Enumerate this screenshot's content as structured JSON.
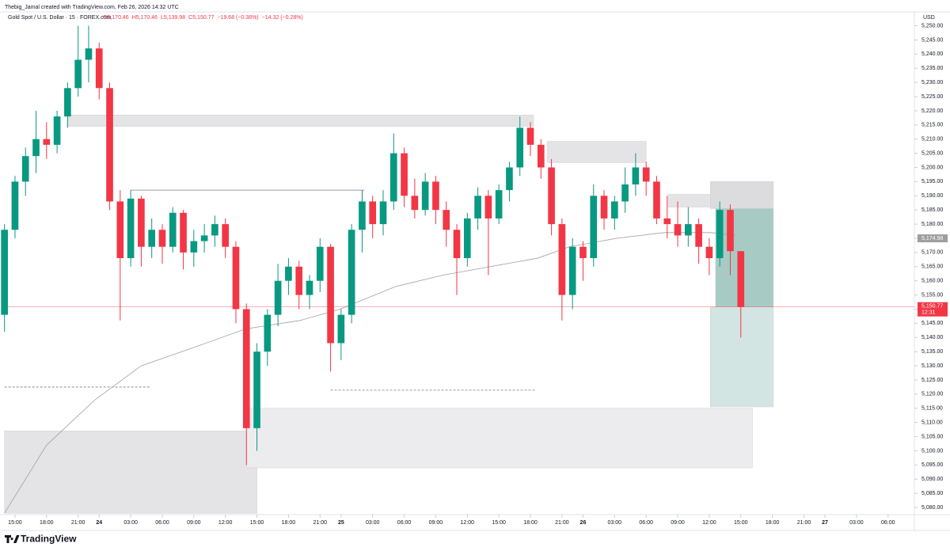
{
  "chart_data": {
    "type": "candlestick",
    "author_line": "Thebig_Jamal created with TradingView.com, Feb 26, 2026 14:32 UTC",
    "symbol": "Gold Spot / U.S. Dollar · 15 · FOREX.com",
    "legend_values": [
      "O5,170.46",
      "H5,170.46",
      "L5,139.98",
      "C5,150.77",
      "−19.68 (−0.38%)",
      "−14.32 (−0.28%)"
    ],
    "currency": "USD",
    "brand": "TradingView",
    "up_color": "#089981",
    "down_color": "#f23645",
    "x": [
      -1,
      0,
      1,
      2,
      3,
      4,
      5,
      6,
      7,
      8,
      9,
      10,
      11,
      12,
      13,
      14,
      15,
      16,
      17,
      18,
      19,
      20,
      21,
      22,
      23,
      24,
      25,
      26,
      27,
      28,
      29,
      30,
      31,
      32,
      33,
      34,
      35,
      36,
      37,
      38,
      39,
      40,
      41,
      42,
      43,
      44,
      45,
      46,
      47,
      48,
      49,
      50,
      51,
      52,
      53,
      54,
      55,
      56,
      57,
      58,
      59,
      60,
      61,
      62,
      63,
      64,
      65,
      66,
      67,
      68,
      69
    ],
    "open": [
      5148,
      5178,
      5195,
      5204,
      5210,
      5208,
      5218,
      5228,
      5238,
      5242,
      5228,
      5188,
      5168,
      5189,
      5172,
      5178,
      5172,
      5184,
      5170,
      5174,
      5176,
      5180,
      5172,
      5150,
      5108,
      5135,
      5148,
      5160,
      5165,
      5155,
      5160,
      5172,
      5138,
      5148,
      5178,
      5188,
      5180,
      5188,
      5205,
      5190,
      5185,
      5195,
      5185,
      5178,
      5168,
      5182,
      5190,
      5182,
      5192,
      5200,
      5214,
      5208,
      5200,
      5180,
      5155,
      5172,
      5168,
      5190,
      5182,
      5188,
      5194,
      5200,
      5195,
      5182,
      5180,
      5176,
      5180,
      5172,
      5168,
      5185,
      5170.46
    ],
    "high": [
      5180,
      5197,
      5207,
      5220,
      5216,
      5220,
      5230,
      5250,
      5250,
      5244,
      5230,
      5192,
      5192,
      5190,
      5182,
      5180,
      5186,
      5185,
      5178,
      5180,
      5183,
      5182,
      5174,
      5152,
      5138,
      5150,
      5166,
      5168,
      5167,
      5162,
      5175,
      5173,
      5150,
      5180,
      5192,
      5190,
      5192,
      5212,
      5207,
      5196,
      5198,
      5197,
      5188,
      5180,
      5184,
      5193,
      5192,
      5194,
      5202,
      5218,
      5216,
      5210,
      5203,
      5182,
      5175,
      5174,
      5194,
      5192,
      5190,
      5200,
      5205,
      5202,
      5197,
      5190,
      5188,
      5186,
      5182,
      5175,
      5188,
      5187,
      5170.46
    ],
    "low": [
      5142,
      5175,
      5190,
      5198,
      5203,
      5205,
      5214,
      5225,
      5230,
      5224,
      5185,
      5146,
      5165,
      5165,
      5168,
      5166,
      5170,
      5164,
      5165,
      5170,
      5172,
      5168,
      5145,
      5095,
      5100,
      5130,
      5144,
      5155,
      5150,
      5150,
      5156,
      5128,
      5132,
      5145,
      5170,
      5175,
      5176,
      5185,
      5186,
      5182,
      5183,
      5180,
      5172,
      5155,
      5165,
      5178,
      5162,
      5180,
      5188,
      5197,
      5204,
      5196,
      5176,
      5146,
      5150,
      5160,
      5165,
      5178,
      5178,
      5184,
      5190,
      5190,
      5180,
      5175,
      5172,
      5172,
      5166,
      5162,
      5165,
      5162,
      5139.98
    ],
    "close": [
      5178,
      5195,
      5204,
      5210,
      5208,
      5218,
      5228,
      5238,
      5242,
      5228,
      5188,
      5168,
      5189,
      5172,
      5178,
      5172,
      5184,
      5170,
      5174,
      5176,
      5180,
      5172,
      5150,
      5108,
      5135,
      5148,
      5160,
      5165,
      5155,
      5160,
      5172,
      5138,
      5148,
      5178,
      5188,
      5180,
      5188,
      5205,
      5190,
      5185,
      5195,
      5185,
      5178,
      5168,
      5182,
      5190,
      5182,
      5192,
      5200,
      5214,
      5208,
      5200,
      5180,
      5155,
      5172,
      5168,
      5190,
      5182,
      5188,
      5194,
      5200,
      5195,
      5182,
      5180,
      5176,
      5180,
      5172,
      5168,
      5185,
      5170.46,
      5150.77
    ],
    "ma": {
      "color": "#a0a0a0",
      "x": [
        -1,
        3,
        7.6,
        12,
        17.4,
        21.9,
        27.1,
        30.9,
        36.2,
        40.7,
        45.2,
        49.7,
        52.7,
        57.2,
        61.7,
        66.2,
        68.5
      ],
      "values": [
        5078,
        5102,
        5118,
        5130,
        5137,
        5143,
        5146,
        5150,
        5158,
        5162,
        5165,
        5168,
        5172,
        5175,
        5177,
        5177,
        5176
      ]
    },
    "ma_label": {
      "value": 5174.98,
      "label": "5,174.98"
    },
    "last_price": {
      "value": 5150.77,
      "label": "5,150.77"
    },
    "countdown": "12:31",
    "zones": [
      {
        "x": [
          5,
          49.3
        ],
        "y": [
          5214.5,
          5218.5
        ],
        "color": "#e4e4e7"
      },
      {
        "x": [
          50.6,
          60
        ],
        "y": [
          5201.7,
          5209.2
        ],
        "color": "#e4e4e7"
      },
      {
        "x": [
          -1,
          23
        ],
        "y": [
          5078,
          5107
        ],
        "color": "#e4e4e7"
      },
      {
        "x": [
          22,
          70.1
        ],
        "y": [
          5094,
          5115
        ],
        "color": "#ececee"
      },
      {
        "x": [
          62.1,
          67.2
        ],
        "y": [
          5186,
          5190.5
        ],
        "color": "#e4e4e7"
      },
      {
        "x": [
          66.1,
          72.1
        ],
        "y": [
          5185.5,
          5195
        ],
        "color": "#dcdcde"
      },
      {
        "x": [
          66.6,
          72.1
        ],
        "y": [
          5150.77,
          5185.5
        ],
        "color": "#a7cbc4"
      },
      {
        "x": [
          66.1,
          72.1
        ],
        "y": [
          5115.5,
          5150.77
        ],
        "color": "#d2e5e2"
      }
    ],
    "levels": [
      {
        "x": [
          11,
          33.2
        ],
        "y": 5192,
        "dashed": false
      },
      {
        "x": [
          -1,
          12.8
        ],
        "y": 5122.5,
        "dashed": true
      },
      {
        "x": [
          30,
          49.5
        ],
        "y": 5121.4,
        "dashed": true
      }
    ],
    "xlim": [
      -1.05,
      85.5
    ],
    "ylim": [
      5077.5,
      5253.5
    ],
    "xticks": [
      {
        "value": 0,
        "label": "15:00"
      },
      {
        "value": 3,
        "label": "18:00"
      },
      {
        "value": 6,
        "label": "21:00"
      },
      {
        "value": 8,
        "label": "24"
      },
      {
        "value": 11,
        "label": "03:00"
      },
      {
        "value": 14,
        "label": "06:00"
      },
      {
        "value": 17,
        "label": "09:00"
      },
      {
        "value": 20,
        "label": "12:00"
      },
      {
        "value": 23,
        "label": "15:00"
      },
      {
        "value": 26,
        "label": "18:00"
      },
      {
        "value": 29,
        "label": "21:00"
      },
      {
        "value": 31,
        "label": "25"
      },
      {
        "value": 34,
        "label": "03:00"
      },
      {
        "value": 37,
        "label": "06:00"
      },
      {
        "value": 40,
        "label": "09:00"
      },
      {
        "value": 43,
        "label": "12:00"
      },
      {
        "value": 46,
        "label": "15:00"
      },
      {
        "value": 49,
        "label": "18:00"
      },
      {
        "value": 52,
        "label": "21:00"
      },
      {
        "value": 54,
        "label": "26"
      },
      {
        "value": 57,
        "label": "03:00"
      },
      {
        "value": 60,
        "label": "06:00"
      },
      {
        "value": 63,
        "label": "09:00"
      },
      {
        "value": 66,
        "label": "12:00"
      },
      {
        "value": 69,
        "label": "15:00"
      },
      {
        "value": 72,
        "label": "18:00"
      },
      {
        "value": 75,
        "label": "21:00"
      },
      {
        "value": 77,
        "label": "27"
      },
      {
        "value": 80,
        "label": "03:00"
      },
      {
        "value": 83,
        "label": "06:00"
      }
    ],
    "yticks": [
      {
        "value": 5080,
        "label": "5,080.00"
      },
      {
        "value": 5085,
        "label": "5,085.00"
      },
      {
        "value": 5090,
        "label": "5,090.00"
      },
      {
        "value": 5095,
        "label": "5,095.00"
      },
      {
        "value": 5100,
        "label": "5,100.00"
      },
      {
        "value": 5105,
        "label": "5,105.00"
      },
      {
        "value": 5110,
        "label": "5,110.00"
      },
      {
        "value": 5115,
        "label": "5,115.00"
      },
      {
        "value": 5120,
        "label": "5,120.00"
      },
      {
        "value": 5125,
        "label": "5,125.00"
      },
      {
        "value": 5130,
        "label": "5,130.00"
      },
      {
        "value": 5135,
        "label": "5,135.00"
      },
      {
        "value": 5140,
        "label": "5,140.00"
      },
      {
        "value": 5145,
        "label": "5,145.00"
      },
      {
        "value": 5150,
        "label": "5,150.00"
      },
      {
        "value": 5155,
        "label": "5,155.00"
      },
      {
        "value": 5160,
        "label": "5,160.00"
      },
      {
        "value": 5165,
        "label": "5,165.00"
      },
      {
        "value": 5170,
        "label": "5,170.00"
      },
      {
        "value": 5175,
        "label": "5,175.00"
      },
      {
        "value": 5180,
        "label": "5,180.00"
      },
      {
        "value": 5185,
        "label": "5,185.00"
      },
      {
        "value": 5190,
        "label": "5,190.00"
      },
      {
        "value": 5195,
        "label": "5,195.00"
      },
      {
        "value": 5200,
        "label": "5,200.00"
      },
      {
        "value": 5205,
        "label": "5,205.00"
      },
      {
        "value": 5210,
        "label": "5,210.00"
      },
      {
        "value": 5215,
        "label": "5,215.00"
      },
      {
        "value": 5220,
        "label": "5,220.00"
      },
      {
        "value": 5225,
        "label": "5,225.00"
      },
      {
        "value": 5230,
        "label": "5,230.00"
      },
      {
        "value": 5235,
        "label": "5,235.00"
      },
      {
        "value": 5240,
        "label": "5,240.00"
      },
      {
        "value": 5245,
        "label": "5,245.00"
      },
      {
        "value": 5250,
        "label": "5,250.00"
      }
    ]
  }
}
